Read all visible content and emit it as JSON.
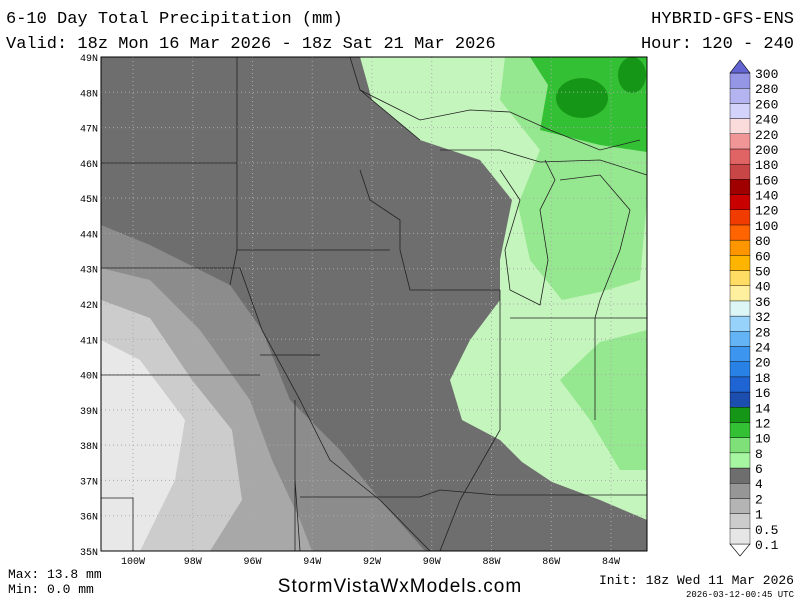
{
  "header": {
    "title": "6-10 Day Total Precipitation (mm)",
    "valid": "Valid: 18z Mon 16 Mar 2026 - 18z Sat 21 Mar 2026",
    "model": "HYBRID-GFS-ENS",
    "hour": "Hour: 120 - 240"
  },
  "map": {
    "lat_labels": [
      "49N",
      "48N",
      "47N",
      "46N",
      "45N",
      "44N",
      "43N",
      "42N",
      "41N",
      "40N",
      "39N",
      "38N",
      "37N",
      "36N",
      "35N"
    ],
    "lon_labels": [
      "100W",
      "98W",
      "96W",
      "94W",
      "92W",
      "90W",
      "88W",
      "86W",
      "84W"
    ]
  },
  "legend": {
    "levels": [
      0.1,
      0.5,
      1,
      2,
      4,
      6,
      8,
      10,
      12,
      14,
      16,
      18,
      20,
      24,
      28,
      32,
      36,
      40,
      50,
      60,
      80,
      100,
      120,
      140,
      160,
      180,
      200,
      220,
      240,
      260,
      280,
      300
    ],
    "colors": [
      "#ffffff",
      "#e6e6e6",
      "#cccccc",
      "#b4b4b4",
      "#969696",
      "#6e6e6e",
      "#a6f5a0",
      "#7fe07a",
      "#34c034",
      "#169616",
      "#1c4eb0",
      "#1e64d2",
      "#2882e6",
      "#3c96f0",
      "#64b4f5",
      "#96d2fa",
      "#dcf5f5",
      "#fff0a0",
      "#ffdc64",
      "#ffb400",
      "#ff9600",
      "#ff6400",
      "#f03c00",
      "#c80000",
      "#a00000",
      "#c84646",
      "#e06464",
      "#f09696",
      "#fadcdc",
      "#d2d2fa",
      "#b4b4f0",
      "#9696e6",
      "#6464d2"
    ]
  },
  "footer": {
    "max": "Max: 13.8 mm",
    "min": "Min: 0.0 mm",
    "site": "StormVistaWxModels.com",
    "init": "Init: 18z Wed 11 Mar 2026",
    "timestamp": "2026-03-12-00:45 UTC"
  }
}
